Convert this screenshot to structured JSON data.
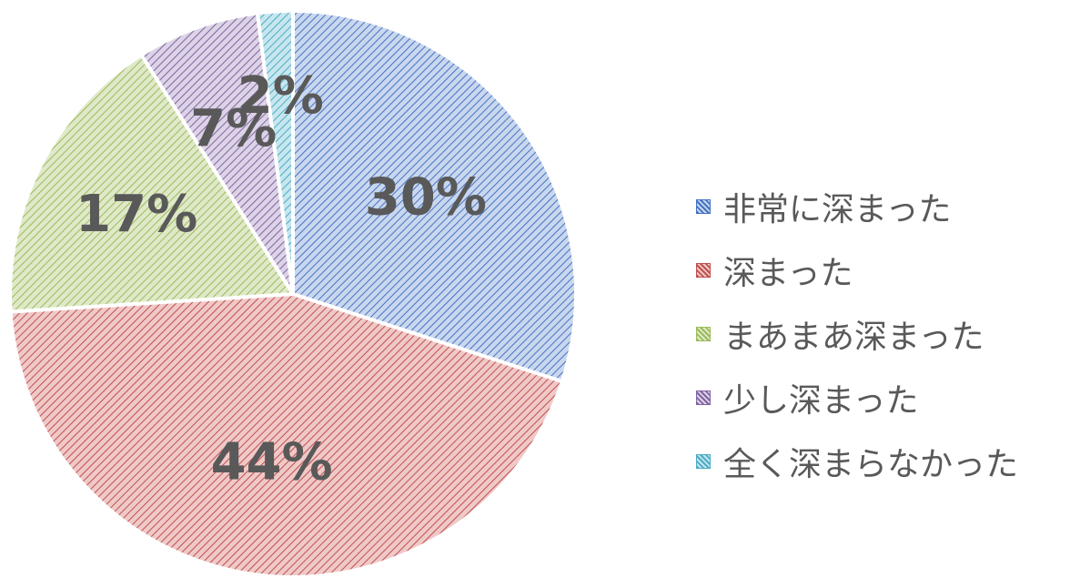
{
  "chart_data": {
    "type": "pie",
    "start_angle_deg": 0,
    "direction": "clockwise",
    "legend_position": "right",
    "slices": [
      {
        "name": "非常に深まった",
        "value": 30,
        "label": "30%",
        "color": "#4472c4",
        "fill": "#c9d7ee"
      },
      {
        "name": "深まった",
        "value": 44,
        "label": "44%",
        "color": "#c0504d",
        "fill": "#efc9c8"
      },
      {
        "name": "まあまあ深まった",
        "value": 17,
        "label": "17%",
        "color": "#9bbb59",
        "fill": "#dfe9c9"
      },
      {
        "name": "少し深まった",
        "value": 7,
        "label": "7%",
        "color": "#8064a2",
        "fill": "#dcd3e6"
      },
      {
        "name": "全く深まらなかった",
        "value": 2,
        "label": "2%",
        "color": "#4bacc6",
        "fill": "#c7e6ee"
      }
    ]
  }
}
